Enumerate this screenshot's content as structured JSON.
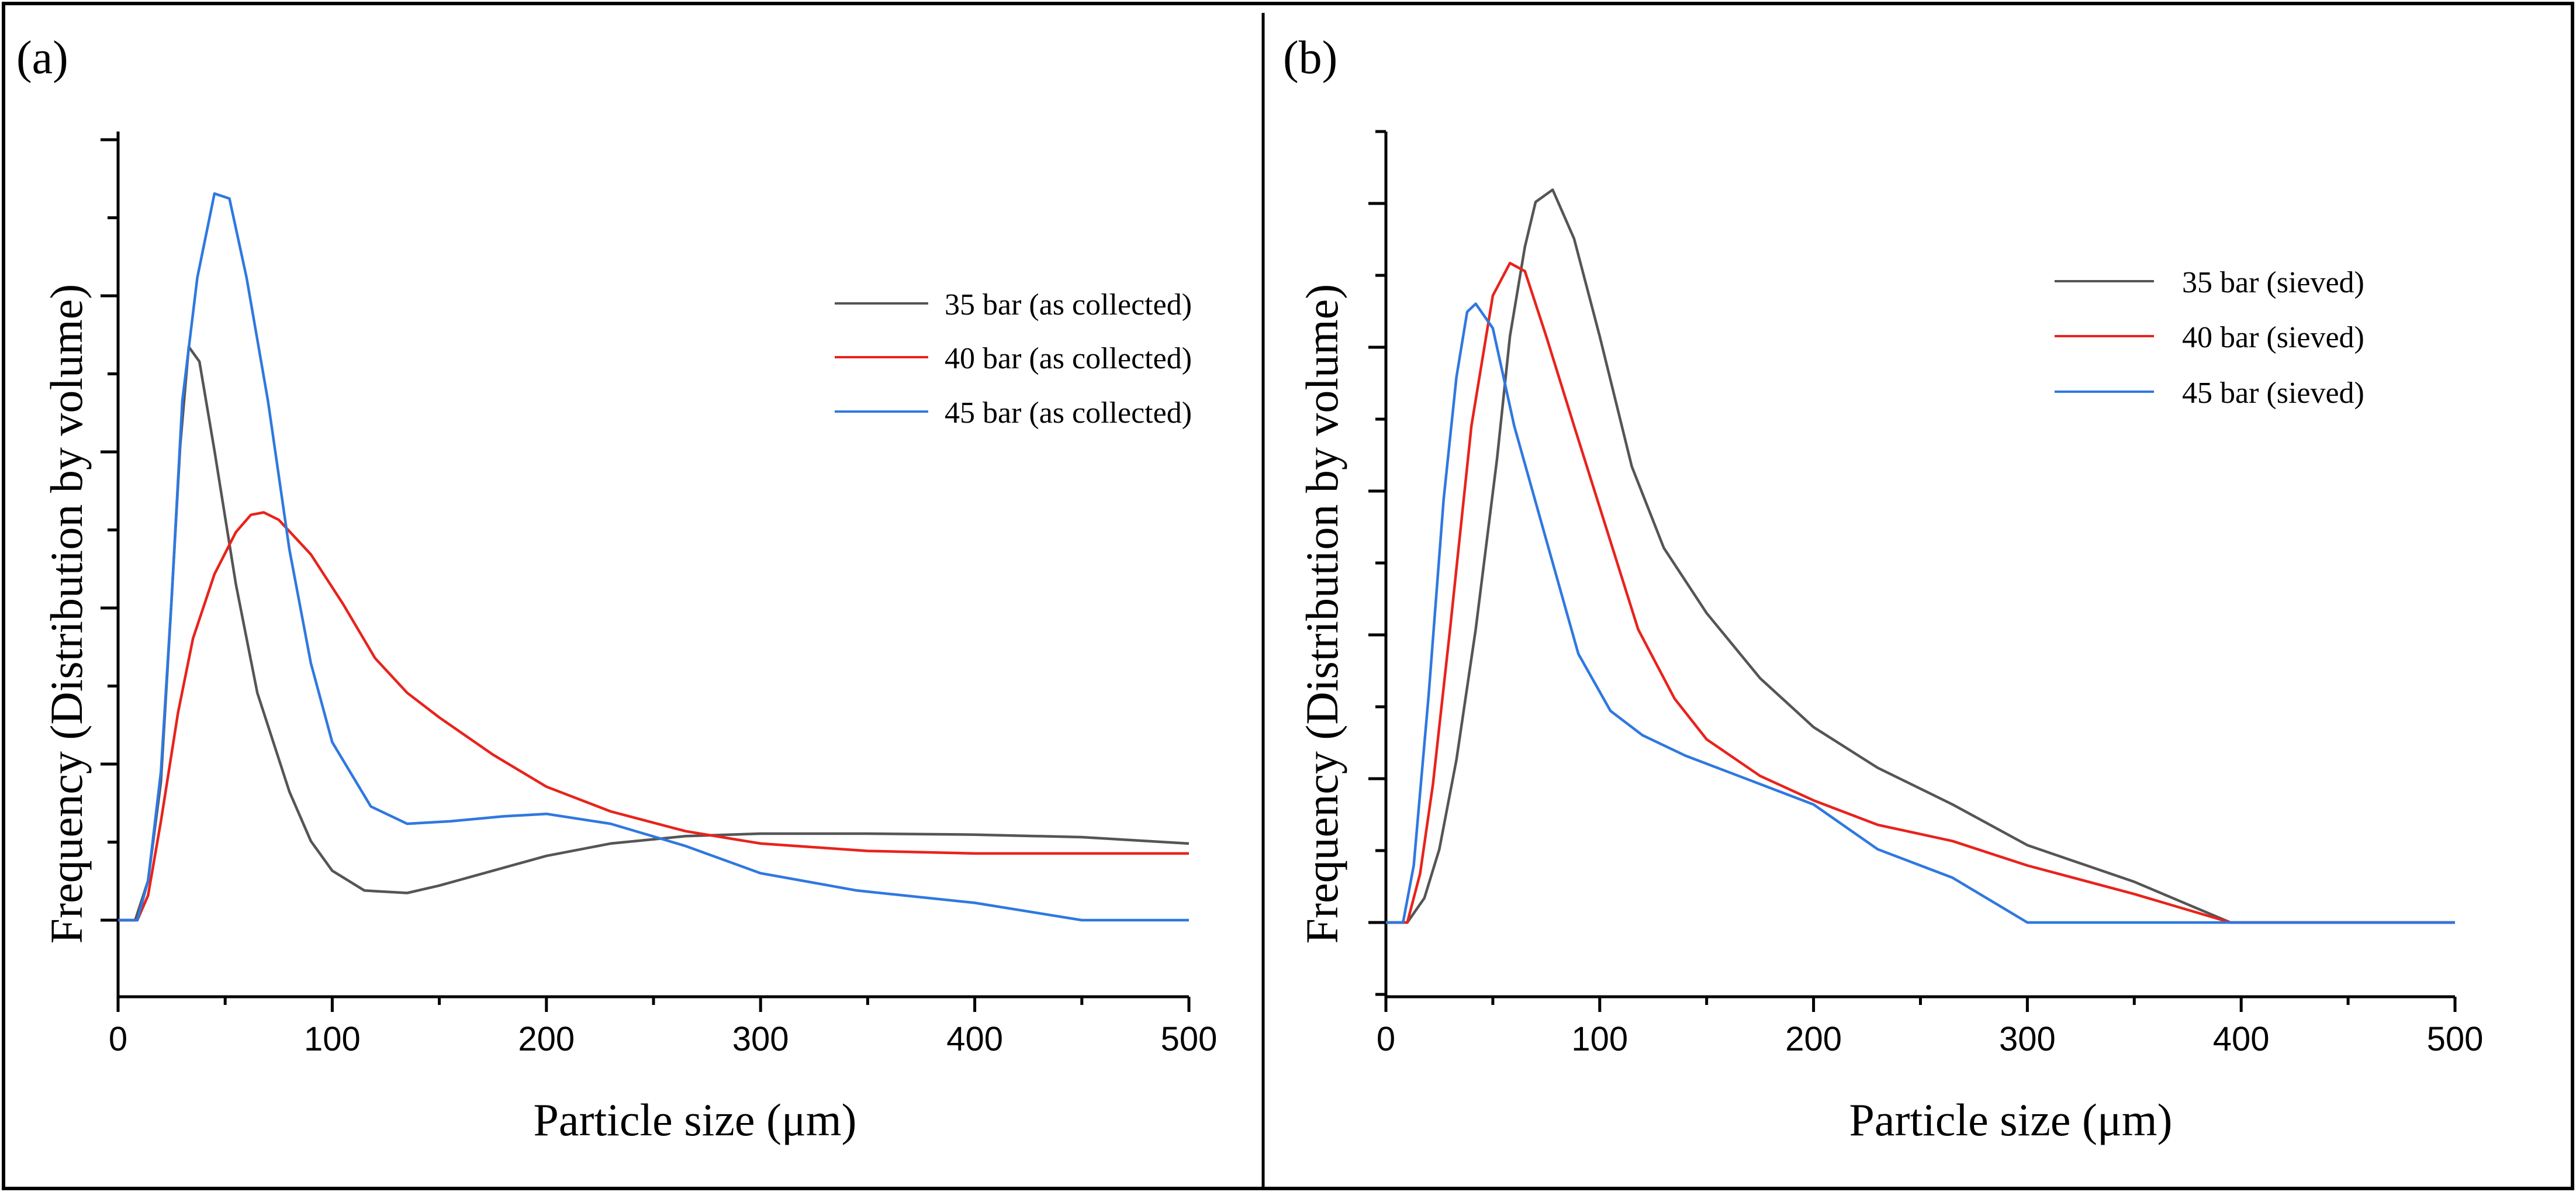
{
  "chart_data": [
    {
      "type": "line",
      "panel_label": "(a)",
      "xlabel": "Particle size (μm)",
      "ylabel": "Frequency (Distribution by volume)",
      "xlim": [
        0,
        500
      ],
      "x_ticks": [
        "0",
        "100",
        "200",
        "300",
        "400",
        "500"
      ],
      "y_ticks_labeled": false,
      "legend_position": "right",
      "series": [
        {
          "name": "35 bar (as collected)",
          "color": "#555555",
          "points": [
            [
              0,
              0
            ],
            [
              8,
              0
            ],
            [
              14,
              0.8
            ],
            [
              20,
              2.8
            ],
            [
              25,
              6.5
            ],
            [
              29,
              9.6
            ],
            [
              33,
              11.6
            ],
            [
              38,
              11.3
            ],
            [
              45,
              9.5
            ],
            [
              55,
              6.8
            ],
            [
              65,
              4.6
            ],
            [
              80,
              2.6
            ],
            [
              90,
              1.6
            ],
            [
              100,
              1.0
            ],
            [
              115,
              0.6
            ],
            [
              135,
              0.55
            ],
            [
              150,
              0.7
            ],
            [
              175,
              1.0
            ],
            [
              200,
              1.3
            ],
            [
              230,
              1.55
            ],
            [
              265,
              1.7
            ],
            [
              300,
              1.75
            ],
            [
              350,
              1.75
            ],
            [
              400,
              1.73
            ],
            [
              450,
              1.68
            ],
            [
              500,
              1.55
            ]
          ]
        },
        {
          "name": "40 bar (as collected)",
          "color": "#e8231c",
          "points": [
            [
              0,
              0
            ],
            [
              9,
              0
            ],
            [
              14,
              0.5
            ],
            [
              20,
              2.0
            ],
            [
              28,
              4.2
            ],
            [
              35,
              5.7
            ],
            [
              45,
              7.0
            ],
            [
              55,
              7.85
            ],
            [
              62,
              8.2
            ],
            [
              68,
              8.25
            ],
            [
              75,
              8.1
            ],
            [
              90,
              7.4
            ],
            [
              105,
              6.4
            ],
            [
              120,
              5.3
            ],
            [
              135,
              4.6
            ],
            [
              150,
              4.1
            ],
            [
              175,
              3.35
            ],
            [
              200,
              2.7
            ],
            [
              230,
              2.2
            ],
            [
              265,
              1.8
            ],
            [
              300,
              1.55
            ],
            [
              350,
              1.4
            ],
            [
              400,
              1.35
            ],
            [
              450,
              1.35
            ],
            [
              500,
              1.35
            ]
          ]
        },
        {
          "name": "45 bar (as collected)",
          "color": "#2f78e0",
          "points": [
            [
              0,
              0
            ],
            [
              9,
              0
            ],
            [
              14,
              0.8
            ],
            [
              20,
              3.0
            ],
            [
              25,
              6.5
            ],
            [
              30,
              10.5
            ],
            [
              37,
              13.0
            ],
            [
              45,
              14.7
            ],
            [
              52,
              14.6
            ],
            [
              60,
              13.0
            ],
            [
              70,
              10.5
            ],
            [
              80,
              7.5
            ],
            [
              90,
              5.2
            ],
            [
              100,
              3.6
            ],
            [
              118,
              2.3
            ],
            [
              135,
              1.95
            ],
            [
              155,
              2.0
            ],
            [
              180,
              2.1
            ],
            [
              200,
              2.15
            ],
            [
              230,
              1.95
            ],
            [
              265,
              1.5
            ],
            [
              300,
              0.95
            ],
            [
              345,
              0.6
            ],
            [
              400,
              0.35
            ],
            [
              450,
              0
            ],
            [
              500,
              0
            ]
          ]
        }
      ]
    },
    {
      "type": "line",
      "panel_label": "(b)",
      "xlabel": "Particle size (μm)",
      "ylabel": "Frequency (Distribution by volume)",
      "xlim": [
        0,
        500
      ],
      "x_ticks": [
        "0",
        "100",
        "200",
        "300",
        "400",
        "500"
      ],
      "y_ticks_labeled": false,
      "legend_position": "top-right",
      "series": [
        {
          "name": "35 bar (sieved)",
          "color": "#555555",
          "points": [
            [
              0,
              0
            ],
            [
              10,
              0
            ],
            [
              18,
              0.3
            ],
            [
              25,
              0.9
            ],
            [
              33,
              2.0
            ],
            [
              42,
              3.6
            ],
            [
              52,
              5.7
            ],
            [
              58,
              7.2
            ],
            [
              65,
              8.3
            ],
            [
              70,
              8.85
            ],
            [
              78,
              9.0
            ],
            [
              88,
              8.4
            ],
            [
              100,
              7.2
            ],
            [
              115,
              5.6
            ],
            [
              130,
              4.6
            ],
            [
              150,
              3.8
            ],
            [
              175,
              3.0
            ],
            [
              200,
              2.4
            ],
            [
              230,
              1.9
            ],
            [
              265,
              1.45
            ],
            [
              300,
              0.95
            ],
            [
              350,
              0.5
            ],
            [
              395,
              0
            ],
            [
              450,
              0
            ],
            [
              500,
              0
            ]
          ]
        },
        {
          "name": "40 bar (sieved)",
          "color": "#e8231c",
          "points": [
            [
              0,
              0
            ],
            [
              10,
              0
            ],
            [
              16,
              0.6
            ],
            [
              22,
              1.7
            ],
            [
              30,
              3.6
            ],
            [
              40,
              6.1
            ],
            [
              50,
              7.7
            ],
            [
              58,
              8.1
            ],
            [
              65,
              8.0
            ],
            [
              75,
              7.2
            ],
            [
              88,
              6.1
            ],
            [
              100,
              5.1
            ],
            [
              118,
              3.6
            ],
            [
              135,
              2.75
            ],
            [
              150,
              2.25
            ],
            [
              175,
              1.8
            ],
            [
              200,
              1.5
            ],
            [
              230,
              1.2
            ],
            [
              265,
              1.0
            ],
            [
              300,
              0.7
            ],
            [
              350,
              0.35
            ],
            [
              395,
              0
            ],
            [
              450,
              0
            ],
            [
              500,
              0
            ]
          ]
        },
        {
          "name": "45 bar (sieved)",
          "color": "#2f78e0",
          "points": [
            [
              0,
              0
            ],
            [
              8,
              0
            ],
            [
              13,
              0.7
            ],
            [
              20,
              2.8
            ],
            [
              27,
              5.2
            ],
            [
              33,
              6.7
            ],
            [
              38,
              7.5
            ],
            [
              42,
              7.6
            ],
            [
              50,
              7.3
            ],
            [
              60,
              6.1
            ],
            [
              75,
              4.7
            ],
            [
              90,
              3.3
            ],
            [
              105,
              2.6
            ],
            [
              120,
              2.3
            ],
            [
              140,
              2.05
            ],
            [
              165,
              1.8
            ],
            [
              200,
              1.45
            ],
            [
              230,
              0.9
            ],
            [
              265,
              0.55
            ],
            [
              300,
              0
            ],
            [
              350,
              0
            ],
            [
              400,
              0
            ],
            [
              450,
              0
            ],
            [
              500,
              0
            ]
          ]
        }
      ]
    }
  ]
}
